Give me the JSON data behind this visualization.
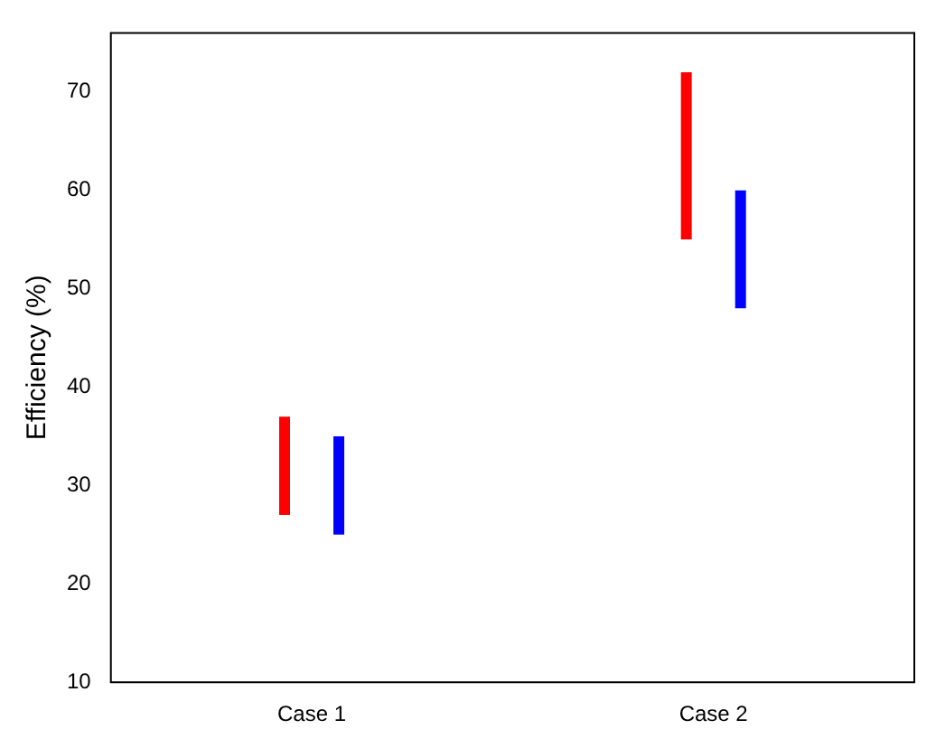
{
  "chart_data": {
    "type": "bar",
    "ylabel": "Efficiency (%)",
    "categories": [
      "Case 1",
      "Case 2"
    ],
    "series": [
      {
        "color": "#ff0000",
        "values": [
          10,
          17
        ],
        "base": [
          27,
          55
        ]
      },
      {
        "color": "#0000ff",
        "values": [
          10,
          12
        ],
        "base": [
          25,
          48
        ]
      }
    ],
    "ylim": [
      10,
      76
    ],
    "yticks": [
      10,
      20,
      30,
      40,
      50,
      60,
      70
    ],
    "grid": false
  }
}
